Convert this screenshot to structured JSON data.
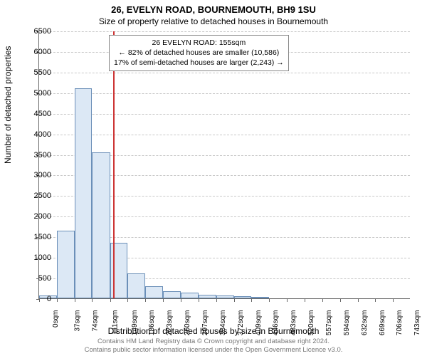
{
  "title_main": "26, EVELYN ROAD, BOURNEMOUTH, BH9 1SU",
  "title_sub": "Size of property relative to detached houses in Bournemouth",
  "ylabel": "Number of detached properties",
  "xlabel": "Distribution of detached houses by size in Bournemouth",
  "chart": {
    "type": "histogram",
    "ylim": [
      0,
      6500
    ],
    "ytick_step": 500,
    "xticks": [
      0,
      37,
      74,
      111,
      149,
      186,
      223,
      260,
      297,
      334,
      372,
      409,
      446,
      483,
      520,
      557,
      594,
      632,
      669,
      706,
      743
    ],
    "xtick_unit": "sqm",
    "xmax": 780,
    "bars": [
      {
        "x0": 0,
        "x1": 37,
        "v": 70
      },
      {
        "x0": 37,
        "x1": 74,
        "v": 1650
      },
      {
        "x0": 74,
        "x1": 111,
        "v": 5100
      },
      {
        "x0": 111,
        "x1": 149,
        "v": 3550
      },
      {
        "x0": 149,
        "x1": 186,
        "v": 1350
      },
      {
        "x0": 186,
        "x1": 223,
        "v": 600
      },
      {
        "x0": 223,
        "x1": 260,
        "v": 300
      },
      {
        "x0": 260,
        "x1": 297,
        "v": 180
      },
      {
        "x0": 297,
        "x1": 334,
        "v": 140
      },
      {
        "x0": 334,
        "x1": 372,
        "v": 90
      },
      {
        "x0": 372,
        "x1": 409,
        "v": 70
      },
      {
        "x0": 409,
        "x1": 446,
        "v": 45
      },
      {
        "x0": 446,
        "x1": 483,
        "v": 20
      }
    ],
    "bar_fill": "#dce8f5",
    "bar_stroke": "#6b8fb8",
    "grid_color": "#c8c8c8",
    "ref_line_x": 155,
    "ref_line_color": "#cc3333",
    "background_color": "#ffffff"
  },
  "annotation": {
    "line1": "26 EVELYN ROAD: 155sqm",
    "line2": "← 82% of detached houses are smaller (10,586)",
    "line3": "17% of semi-detached houses are larger (2,243) →"
  },
  "footer": {
    "line1": "Contains HM Land Registry data © Crown copyright and database right 2024.",
    "line2": "Contains public sector information licensed under the Open Government Licence v3.0."
  }
}
